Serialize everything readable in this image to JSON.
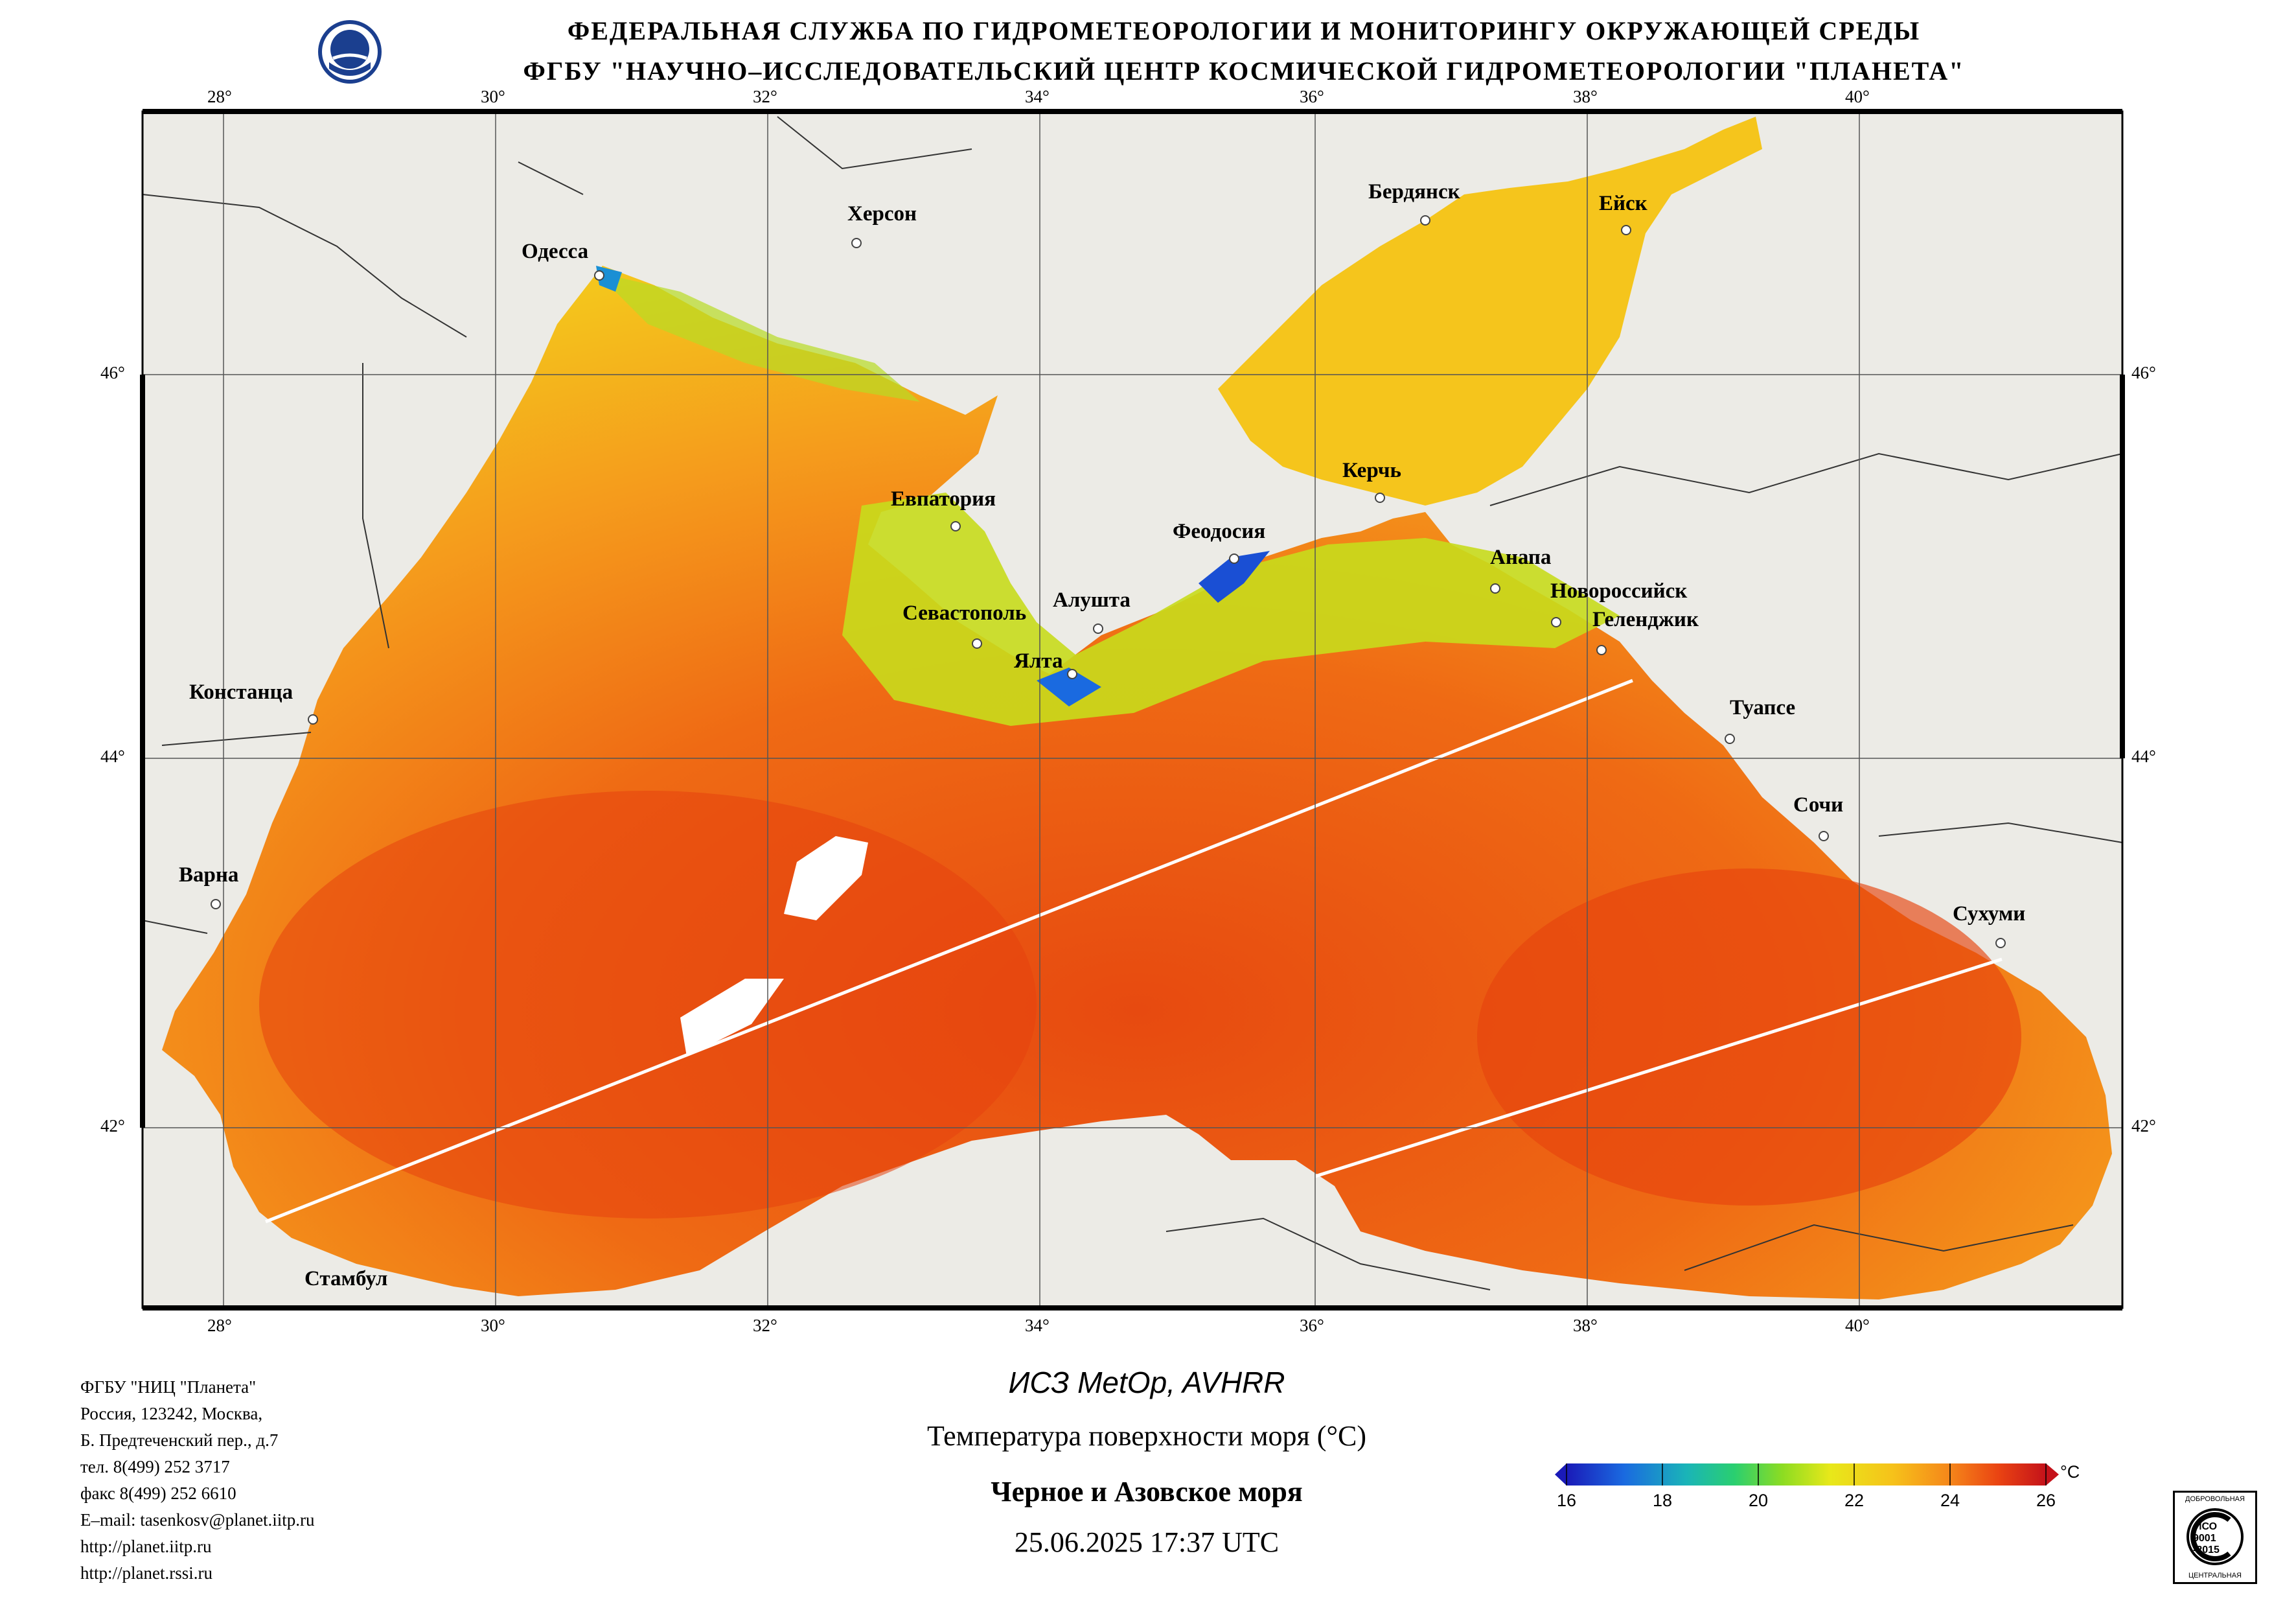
{
  "header": {
    "line1": "ФЕДЕРАЛЬНАЯ СЛУЖБА ПО ГИДРОМЕТЕОРОЛОГИИ И МОНИТОРИНГУ ОКРУЖАЮЩЕЙ СРЕДЫ",
    "line2": "ФГБУ \"НАУЧНО–ИССЛЕДОВАТЕЛЬСКИЙ ЦЕНТР КОСМИЧЕСКОЙ ГИДРОМЕТЕОРОЛОГИИ \"ПЛАНЕТА\""
  },
  "map": {
    "lon_labels": [
      "28°",
      "30°",
      "32°",
      "34°",
      "36°",
      "38°",
      "40°"
    ],
    "lat_labels": [
      "46°",
      "44°",
      "42°"
    ],
    "cities": {
      "odessa": "Одесса",
      "kherson": "Херсон",
      "berdyansk": "Бердянск",
      "yeysk": "Ейск",
      "kerch": "Керчь",
      "yevpatoria": "Евпатория",
      "feodosia": "Феодосия",
      "anapa": "Анапа",
      "novorossiysk": "Новороссийск",
      "gelendzhik": "Геленджик",
      "sevastopol": "Севастополь",
      "alushta": "Алушта",
      "yalta": "Ялта",
      "constanta": "Констанца",
      "tuapse": "Туапсе",
      "sochi": "Сочи",
      "varna": "Варна",
      "sukhumi": "Сухуми",
      "istanbul": "Стамбул"
    },
    "colors": {
      "land": "#ecebe6",
      "warm": "#e8450c",
      "mid": "#f5a21a",
      "cool": "#f2e21a",
      "cold": "#1a4fd4"
    }
  },
  "contact": {
    "org": "ФГБУ \"НИЦ \"Планета\"",
    "addr1": "Россия, 123242, Москва,",
    "addr2": "Б. Предтеченский пер., д.7",
    "phone": "тел. 8(499) 252 3717",
    "fax": "факс 8(499) 252 6610",
    "email": "E–mail: tasenkosv@planet.iitp.ru",
    "url1": "http://planet.iitp.ru",
    "url2": "http://planet.rssi.ru"
  },
  "caption": {
    "satellite": "ИСЗ MetOp, AVHRR",
    "parameter": "Температура поверхности моря (°С)",
    "region": "Черное и Азовское моря",
    "datetime": "25.06.2025 17:37 UTC"
  },
  "colorbar": {
    "unit": "°С",
    "ticks": [
      "16",
      "18",
      "20",
      "22",
      "24",
      "26"
    ],
    "min": 16,
    "max": 26
  },
  "iso_badge": {
    "top": "ДОБРОВОЛЬНАЯ",
    "mid1": "ИСО",
    "mid2": "9001",
    "mid3": "-2015",
    "bottom": "ЦЕНТРАЛЬНАЯ"
  }
}
